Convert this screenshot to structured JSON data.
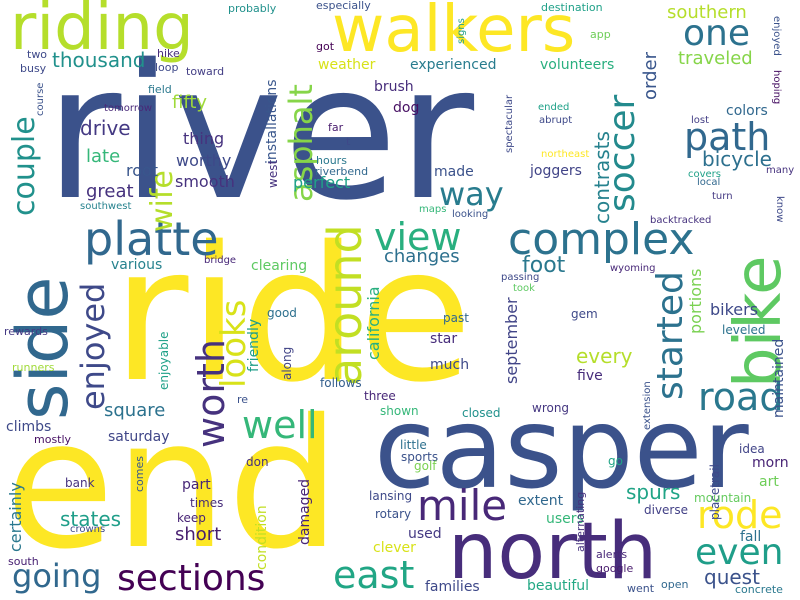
{
  "words": [
    {
      "text": "river",
      "color": "#3b528b"
    },
    {
      "text": "ride",
      "color": "#fde725"
    },
    {
      "text": "casper",
      "color": "#3b528b"
    },
    {
      "text": "end",
      "color": "#fde725"
    },
    {
      "text": "north",
      "color": "#472d7b"
    },
    {
      "text": "bike",
      "color": "#5ec962"
    },
    {
      "text": "side",
      "color": "#31688e"
    },
    {
      "text": "riding",
      "color": "#b5de2b"
    },
    {
      "text": "walkers",
      "color": "#fde725"
    },
    {
      "text": "complex",
      "color": "#2c728e"
    },
    {
      "text": "platte",
      "color": "#31688e"
    },
    {
      "text": "around",
      "color": "#c2df23"
    },
    {
      "text": "worth",
      "color": "#46327e"
    },
    {
      "text": "mile",
      "color": "#482878"
    },
    {
      "text": "sections",
      "color": "#440154"
    },
    {
      "text": "rode",
      "color": "#fde725"
    },
    {
      "text": "east",
      "color": "#21a685"
    },
    {
      "text": "even",
      "color": "#1f9e89"
    },
    {
      "text": "well",
      "color": "#35b779"
    },
    {
      "text": "path",
      "color": "#31688e"
    },
    {
      "text": "one",
      "color": "#2c728e"
    },
    {
      "text": "road",
      "color": "#2a788e"
    },
    {
      "text": "soccer",
      "color": "#238a8d"
    },
    {
      "text": "started",
      "color": "#2c728e"
    },
    {
      "text": "enjoyed",
      "color": "#3e4989"
    },
    {
      "text": "view",
      "color": "#29af7f"
    },
    {
      "text": "looks",
      "color": "#d8e219"
    },
    {
      "text": "going",
      "color": "#31688e"
    },
    {
      "text": "couple",
      "color": "#21918c"
    },
    {
      "text": "wife",
      "color": "#b5de2b"
    },
    {
      "text": "asphalt",
      "color": "#86d549"
    },
    {
      "text": "way",
      "color": "#287c8e"
    },
    {
      "text": "thousand",
      "color": "#21918c"
    },
    {
      "text": "southern",
      "color": "#b5de2b"
    },
    {
      "text": "traveled",
      "color": "#86d549"
    },
    {
      "text": "changes",
      "color": "#2d708e"
    },
    {
      "text": "foot",
      "color": "#2a788e"
    },
    {
      "text": "spurs",
      "color": "#20a486"
    },
    {
      "text": "states",
      "color": "#1f9e89"
    },
    {
      "text": "quest",
      "color": "#3b528b"
    },
    {
      "text": "drive",
      "color": "#443983"
    },
    {
      "text": "bicycle",
      "color": "#2d708e"
    },
    {
      "text": "contrasts",
      "color": "#26828e"
    },
    {
      "text": "every",
      "color": "#b5de2b"
    },
    {
      "text": "square",
      "color": "#2c728e"
    },
    {
      "text": "short",
      "color": "#481f70"
    },
    {
      "text": "california",
      "color": "#29af7f"
    },
    {
      "text": "september",
      "color": "#414487"
    },
    {
      "text": "order",
      "color": "#39568c"
    },
    {
      "text": "portions",
      "color": "#7ad151"
    },
    {
      "text": "bikers",
      "color": "#3e4989"
    },
    {
      "text": "certainly",
      "color": "#2a788e"
    },
    {
      "text": "fifty",
      "color": "#9fda3a"
    },
    {
      "text": "late",
      "color": "#35b779"
    },
    {
      "text": "root",
      "color": "#39568c"
    },
    {
      "text": "great",
      "color": "#46327e"
    },
    {
      "text": "thing",
      "color": "#46327e"
    },
    {
      "text": "worthy",
      "color": "#3e4989"
    },
    {
      "text": "smooth",
      "color": "#46327e"
    },
    {
      "text": "perfect",
      "color": "#1fa188"
    },
    {
      "text": "joggers",
      "color": "#414487"
    },
    {
      "text": "made",
      "color": "#3b528b"
    },
    {
      "text": "weather",
      "color": "#d8e219"
    },
    {
      "text": "experienced",
      "color": "#287c8e"
    },
    {
      "text": "volunteers",
      "color": "#29af7f"
    },
    {
      "text": "brush",
      "color": "#472d7b"
    },
    {
      "text": "dog",
      "color": "#471063"
    },
    {
      "text": "colors",
      "color": "#31688e"
    },
    {
      "text": "various",
      "color": "#26828e"
    },
    {
      "text": "clearing",
      "color": "#5ec962"
    },
    {
      "text": "five",
      "color": "#472d7b"
    },
    {
      "text": "much",
      "color": "#3e4989"
    },
    {
      "text": "star",
      "color": "#472d7b"
    },
    {
      "text": "saturday",
      "color": "#404688"
    },
    {
      "text": "climbs",
      "color": "#3e4989"
    },
    {
      "text": "part",
      "color": "#482878"
    },
    {
      "text": "art",
      "color": "#6ece58"
    },
    {
      "text": "morn",
      "color": "#482475"
    },
    {
      "text": "fall",
      "color": "#2d708e"
    },
    {
      "text": "used",
      "color": "#443983"
    },
    {
      "text": "clever",
      "color": "#d8e219"
    },
    {
      "text": "damaged",
      "color": "#482475"
    },
    {
      "text": "condition",
      "color": "#c2df23"
    },
    {
      "text": "beautiful",
      "color": "#22a884"
    },
    {
      "text": "families",
      "color": "#3e4989"
    },
    {
      "text": "users",
      "color": "#35b779"
    },
    {
      "text": "extent",
      "color": "#31688e"
    },
    {
      "text": "enjoyable",
      "color": "#1fa188"
    },
    {
      "text": "friendly",
      "color": "#1f9e89"
    },
    {
      "text": "installations",
      "color": "#39568c"
    },
    {
      "text": "west",
      "color": "#46327e"
    },
    {
      "text": "maintained",
      "color": "#3b528b"
    },
    {
      "text": "leveled",
      "color": "#2c728e"
    },
    {
      "text": "gem",
      "color": "#3e4989"
    },
    {
      "text": "past",
      "color": "#31688e"
    },
    {
      "text": "good",
      "color": "#2d708e"
    },
    {
      "text": "along",
      "color": "#414487"
    },
    {
      "text": "follows",
      "color": "#355f8d"
    },
    {
      "text": "three",
      "color": "#482878"
    },
    {
      "text": "shown",
      "color": "#35b779"
    },
    {
      "text": "closed",
      "color": "#21918c"
    },
    {
      "text": "wrong",
      "color": "#453781"
    },
    {
      "text": "little",
      "color": "#2d708e"
    },
    {
      "text": "sports",
      "color": "#3b528b"
    },
    {
      "text": "golf",
      "color": "#7ad151"
    },
    {
      "text": "go",
      "color": "#20a486"
    },
    {
      "text": "alternating",
      "color": "#46327e"
    },
    {
      "text": "placetrail",
      "color": "#3e4989"
    },
    {
      "text": "diverse",
      "color": "#424086"
    },
    {
      "text": "mountain",
      "color": "#65cb5e"
    },
    {
      "text": "idea",
      "color": "#414487"
    },
    {
      "text": "extension",
      "color": "#3b528b"
    },
    {
      "text": "don",
      "color": "#46327e"
    },
    {
      "text": "times",
      "color": "#472d7b"
    },
    {
      "text": "keep",
      "color": "#482475"
    },
    {
      "text": "lansing",
      "color": "#3e4989"
    },
    {
      "text": "rotary",
      "color": "#3b528b"
    },
    {
      "text": "bank",
      "color": "#46327e"
    },
    {
      "text": "crowns",
      "color": "#3e4989"
    },
    {
      "text": "comes",
      "color": "#38598c"
    },
    {
      "text": "mostly",
      "color": "#471063"
    },
    {
      "text": "rewards",
      "color": "#443983"
    },
    {
      "text": "runners",
      "color": "#a0da39"
    },
    {
      "text": "re",
      "color": "#3b528b"
    },
    {
      "text": "south",
      "color": "#482173"
    },
    {
      "text": "alerts",
      "color": "#482878"
    },
    {
      "text": "google",
      "color": "#481b6d"
    },
    {
      "text": "went",
      "color": "#3b528b"
    },
    {
      "text": "open",
      "color": "#31688e"
    },
    {
      "text": "concrete",
      "color": "#2a788e"
    },
    {
      "text": "probably",
      "color": "#21918c"
    },
    {
      "text": "especially",
      "color": "#3b528b"
    },
    {
      "text": "destination",
      "color": "#1fa188"
    },
    {
      "text": "signs",
      "color": "#1f9e89"
    },
    {
      "text": "app",
      "color": "#6ece58"
    },
    {
      "text": "got",
      "color": "#440154"
    },
    {
      "text": "enjoyed",
      "color": "#3b528b"
    },
    {
      "text": "hoping",
      "color": "#471063"
    },
    {
      "text": "two",
      "color": "#3e4989"
    },
    {
      "text": "hike",
      "color": "#472d7b"
    },
    {
      "text": "loop",
      "color": "#3e4989"
    },
    {
      "text": "toward",
      "color": "#433e85"
    },
    {
      "text": "busy",
      "color": "#3e4989"
    },
    {
      "text": "field",
      "color": "#2a788e"
    },
    {
      "text": "tomorrow",
      "color": "#482878"
    },
    {
      "text": "course",
      "color": "#3b528b"
    },
    {
      "text": "far",
      "color": "#481b6d"
    },
    {
      "text": "t",
      "color": "#3e4989"
    },
    {
      "text": "hours",
      "color": "#2a788e"
    },
    {
      "text": "riverbend",
      "color": "#31688e"
    },
    {
      "text": "southwest",
      "color": "#26828e"
    },
    {
      "text": "maps",
      "color": "#35b779"
    },
    {
      "text": "looking",
      "color": "#3b528b"
    },
    {
      "text": "spectacular",
      "color": "#3e4989"
    },
    {
      "text": "ended",
      "color": "#1fa188"
    },
    {
      "text": "abrupt",
      "color": "#3e4989"
    },
    {
      "text": "northeast",
      "color": "#fde725"
    },
    {
      "text": "lost",
      "color": "#433e85"
    },
    {
      "text": "covers",
      "color": "#1fa188"
    },
    {
      "text": "local",
      "color": "#31688e"
    },
    {
      "text": "turn",
      "color": "#443983"
    },
    {
      "text": "many",
      "color": "#46327e"
    },
    {
      "text": "know",
      "color": "#3e4989"
    },
    {
      "text": "backtracked",
      "color": "#46327e"
    },
    {
      "text": "wyoming",
      "color": "#482878"
    },
    {
      "text": "passing",
      "color": "#3e4989"
    },
    {
      "text": "took",
      "color": "#5ec962"
    },
    {
      "text": "bridge",
      "color": "#482878"
    }
  ]
}
